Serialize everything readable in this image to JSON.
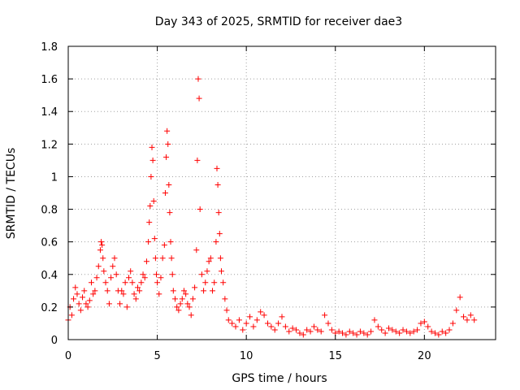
{
  "chart_data": {
    "type": "scatter",
    "title": "Day 343 of 2025, SRMTID for receiver dae3",
    "xlabel": "GPS time / hours",
    "ylabel": "SRMTID / TECUs",
    "xlim": [
      0,
      24
    ],
    "ylim": [
      0,
      1.8
    ],
    "xticks": [
      0,
      5,
      10,
      15,
      20
    ],
    "xtick_labels": [
      "0",
      "5",
      "10",
      "15",
      "20"
    ],
    "yticks": [
      0,
      0.2,
      0.4,
      0.6,
      0.8,
      1,
      1.2,
      1.4,
      1.6,
      1.8
    ],
    "ytick_labels": [
      "0",
      "0.2",
      "0.4",
      "0.6",
      "0.8",
      "1",
      "1.2",
      "1.4",
      "1.6",
      "1.8"
    ],
    "grid": true,
    "marker": "+",
    "color": "#ff0000",
    "series": [
      {
        "name": "SRMTID",
        "x": [
          0.0,
          0.1,
          0.2,
          0.3,
          0.4,
          0.5,
          0.6,
          0.7,
          0.8,
          0.9,
          1.0,
          1.1,
          1.2,
          1.3,
          1.4,
          1.5,
          1.6,
          1.7,
          1.8,
          1.85,
          1.9,
          1.95,
          2.0,
          2.1,
          2.2,
          2.3,
          2.4,
          2.5,
          2.6,
          2.7,
          2.8,
          2.9,
          3.0,
          3.1,
          3.2,
          3.3,
          3.4,
          3.5,
          3.6,
          3.7,
          3.8,
          3.9,
          4.0,
          4.1,
          4.2,
          4.3,
          4.4,
          4.5,
          4.55,
          4.6,
          4.65,
          4.7,
          4.75,
          4.8,
          4.85,
          4.9,
          4.95,
          5.0,
          5.1,
          5.2,
          5.3,
          5.4,
          5.45,
          5.5,
          5.55,
          5.6,
          5.65,
          5.7,
          5.75,
          5.8,
          5.85,
          5.9,
          6.0,
          6.1,
          6.2,
          6.3,
          6.4,
          6.5,
          6.6,
          6.7,
          6.8,
          6.9,
          7.0,
          7.1,
          7.2,
          7.25,
          7.3,
          7.35,
          7.4,
          7.5,
          7.6,
          7.7,
          7.8,
          7.9,
          8.0,
          8.1,
          8.2,
          8.3,
          8.35,
          8.4,
          8.45,
          8.5,
          8.55,
          8.6,
          8.7,
          8.8,
          8.9,
          9.0,
          9.2,
          9.4,
          9.6,
          9.8,
          10.0,
          10.2,
          10.4,
          10.6,
          10.8,
          11.0,
          11.2,
          11.4,
          11.6,
          11.8,
          12.0,
          12.2,
          12.4,
          12.6,
          12.8,
          13.0,
          13.2,
          13.4,
          13.6,
          13.8,
          14.0,
          14.2,
          14.4,
          14.6,
          14.8,
          15.0,
          15.2,
          15.4,
          15.6,
          15.8,
          16.0,
          16.2,
          16.4,
          16.6,
          16.8,
          17.0,
          17.2,
          17.4,
          17.6,
          17.8,
          18.0,
          18.2,
          18.4,
          18.6,
          18.8,
          19.0,
          19.2,
          19.4,
          19.6,
          19.8,
          20.0,
          20.2,
          20.4,
          20.6,
          20.8,
          21.0,
          21.2,
          21.4,
          21.6,
          21.8,
          22.0,
          22.2,
          22.4,
          22.6,
          22.8
        ],
        "y": [
          0.12,
          0.2,
          0.15,
          0.25,
          0.32,
          0.28,
          0.22,
          0.18,
          0.26,
          0.3,
          0.22,
          0.2,
          0.24,
          0.35,
          0.28,
          0.3,
          0.38,
          0.45,
          0.55,
          0.6,
          0.58,
          0.5,
          0.42,
          0.35,
          0.3,
          0.22,
          0.38,
          0.45,
          0.5,
          0.4,
          0.3,
          0.22,
          0.3,
          0.28,
          0.35,
          0.2,
          0.38,
          0.42,
          0.35,
          0.28,
          0.25,
          0.32,
          0.3,
          0.35,
          0.4,
          0.38,
          0.48,
          0.6,
          0.72,
          0.82,
          1.0,
          1.18,
          1.1,
          0.85,
          0.62,
          0.5,
          0.4,
          0.35,
          0.28,
          0.38,
          0.5,
          0.58,
          0.9,
          1.12,
          1.28,
          1.2,
          0.95,
          0.78,
          0.6,
          0.5,
          0.4,
          0.3,
          0.25,
          0.2,
          0.18,
          0.22,
          0.25,
          0.3,
          0.28,
          0.22,
          0.2,
          0.15,
          0.25,
          0.32,
          0.55,
          1.1,
          1.6,
          1.48,
          0.8,
          0.4,
          0.3,
          0.35,
          0.42,
          0.48,
          0.5,
          0.3,
          0.35,
          0.6,
          1.05,
          0.95,
          0.78,
          0.65,
          0.5,
          0.42,
          0.35,
          0.25,
          0.18,
          0.12,
          0.1,
          0.08,
          0.12,
          0.06,
          0.1,
          0.14,
          0.08,
          0.12,
          0.17,
          0.15,
          0.1,
          0.08,
          0.06,
          0.1,
          0.14,
          0.08,
          0.05,
          0.07,
          0.06,
          0.04,
          0.03,
          0.06,
          0.05,
          0.08,
          0.06,
          0.05,
          0.15,
          0.1,
          0.06,
          0.04,
          0.05,
          0.04,
          0.03,
          0.05,
          0.04,
          0.03,
          0.05,
          0.04,
          0.03,
          0.05,
          0.12,
          0.08,
          0.06,
          0.04,
          0.07,
          0.06,
          0.05,
          0.04,
          0.06,
          0.05,
          0.04,
          0.05,
          0.06,
          0.1,
          0.11,
          0.08,
          0.05,
          0.04,
          0.03,
          0.05,
          0.04,
          0.06,
          0.1,
          0.18,
          0.26,
          0.14,
          0.12,
          0.15,
          0.12
        ]
      }
    ]
  }
}
